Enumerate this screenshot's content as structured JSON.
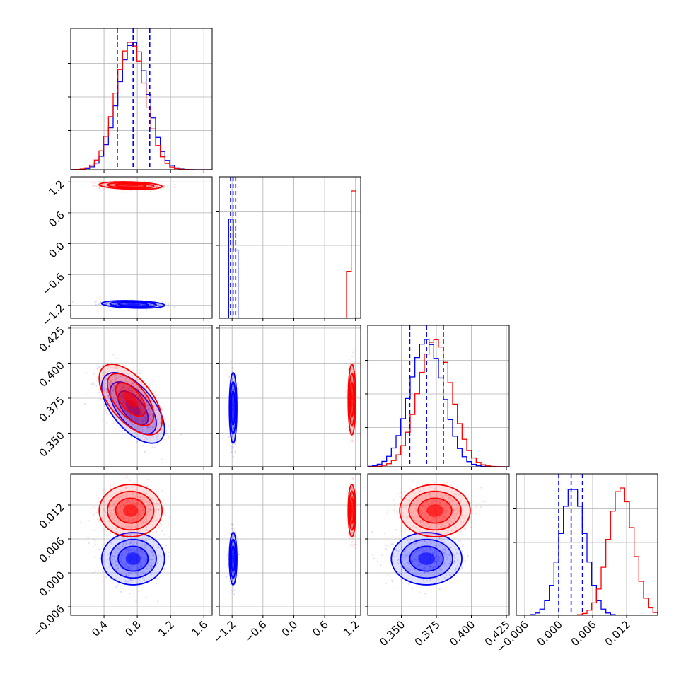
{
  "colors": {
    "series_a": "#ff0000",
    "series_b": "#0000ff",
    "grid": "#b0b0b0"
  },
  "chart_data": {
    "type": "corner",
    "grid": true,
    "parameters": [
      {
        "range": [
          0.0,
          1.7
        ],
        "ticks": [
          0.4,
          0.8,
          1.2,
          1.6
        ],
        "tick_labels": [
          "0.4",
          "0.8",
          "1.2",
          "1.6"
        ]
      },
      {
        "range": [
          -1.45,
          1.3
        ],
        "ticks": [
          -1.2,
          -0.6,
          0.0,
          0.6,
          1.2
        ],
        "tick_labels": [
          "−1.2",
          "−0.6",
          "0.0",
          "0.6",
          "1.2"
        ]
      },
      {
        "range": [
          0.326,
          0.427
        ],
        "ticks": [
          0.35,
          0.375,
          0.4,
          0.425
        ],
        "tick_labels": [
          "0.350",
          "0.375",
          "0.400",
          "0.425"
        ]
      },
      {
        "range": [
          -0.0075,
          0.0175
        ],
        "ticks": [
          -0.006,
          0.0,
          0.006,
          0.012
        ],
        "tick_labels": [
          "−0.006",
          "0.000",
          "0.006",
          "0.012"
        ]
      }
    ],
    "series": [
      {
        "color": "#0000ff",
        "mean": [
          0.75,
          -1.18,
          0.368,
          0.0025
        ],
        "std": [
          0.18,
          0.035,
          0.012,
          0.0022
        ],
        "corr": {
          "0-1": -0.25,
          "0-2": -0.6,
          "0-3": 0.0,
          "1-2": 0.0,
          "1-3": 0.0,
          "2-3": 0.0
        },
        "quantiles": {
          "0": [
            0.56,
            0.75,
            0.95
          ],
          "1": [
            -1.23,
            -1.18,
            -1.13
          ],
          "2": [
            0.356,
            0.368,
            0.38
          ],
          "3": [
            0.0,
            0.0022,
            0.0042
          ]
        }
      },
      {
        "color": "#ff0000",
        "mean": [
          0.72,
          1.13,
          0.374,
          0.011
        ],
        "std": [
          0.18,
          0.035,
          0.012,
          0.0022
        ],
        "corr": {
          "0-1": -0.25,
          "0-2": -0.6,
          "0-3": 0.0,
          "1-2": 0.0,
          "1-3": 0.0,
          "2-3": 0.0
        }
      }
    ]
  }
}
